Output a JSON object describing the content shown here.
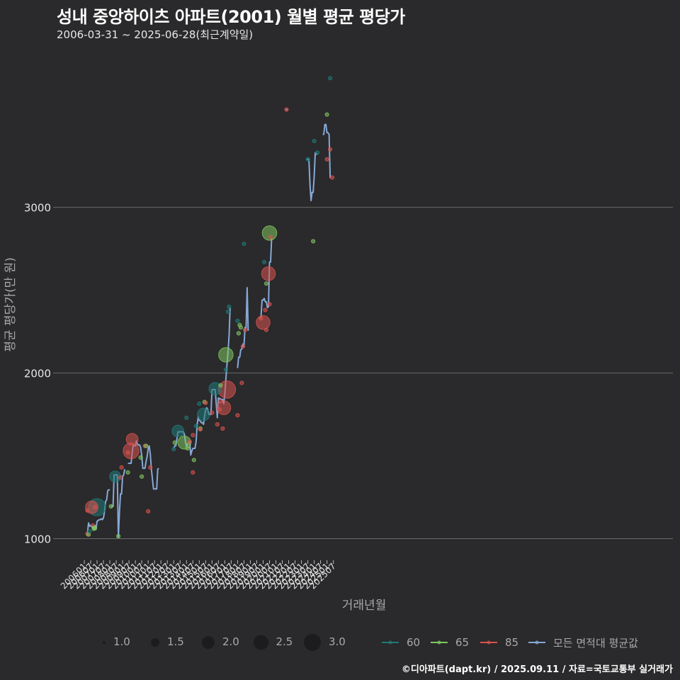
{
  "header": {
    "title": "성내 중앙하이츠 아파트(2001) 월별 평균 평당가",
    "subtitle": "2006-03-31 ~ 2025-06-28(최근계약일)"
  },
  "caption": "©디아파트(dapt.kr) / 2025.09.11 / 자료=국토교통부 실거래가",
  "colors": {
    "background": "#2a292b",
    "grid": "#6b6b6b",
    "s60": "#1f7a78",
    "s65": "#7fc760",
    "s85": "#d9534f",
    "avg": "#86a9d6"
  },
  "legend": {
    "size_title": "",
    "sizes": [
      {
        "label": "1.0",
        "r": 2
      },
      {
        "label": "1.5",
        "r": 6
      },
      {
        "label": "2.0",
        "r": 9
      },
      {
        "label": "2.5",
        "r": 10.5
      },
      {
        "label": "3.0",
        "r": 12
      }
    ],
    "series": [
      {
        "label": "60",
        "color": "#1f7a78"
      },
      {
        "label": "65",
        "color": "#7fc760"
      },
      {
        "label": "85",
        "color": "#d9534f"
      },
      {
        "label": "모든 면적대 평균값",
        "color": "#86a9d6"
      }
    ]
  },
  "chart_data": {
    "type": "scatter",
    "title": "성내 중앙하이츠 아파트(2001) 월별 평균 평당가",
    "subtitle": "2006-03-31 ~ 2025-06-28(최근계약일)",
    "xlabel": "거래년월",
    "ylabel": "평균 평당가(만 원)",
    "yticks": [
      1000,
      2000,
      3000
    ],
    "ylim": [
      870,
      3700
    ],
    "grid": "horizontal",
    "legend_position": "bottom",
    "xticks": [
      "200601",
      "200607",
      "200701",
      "200707",
      "200801",
      "200807",
      "200901",
      "200907",
      "201001",
      "201007",
      "201101",
      "201107",
      "201201",
      "201207",
      "201301",
      "201307",
      "201401",
      "201407",
      "201501",
      "201507",
      "201601",
      "201607",
      "201701",
      "201707",
      "201801",
      "201807",
      "201901",
      "201907",
      "202001",
      "202007",
      "202101",
      "202107",
      "202201",
      "202207",
      "202301",
      "202307",
      "202401",
      "202407",
      "202501",
      "202507"
    ],
    "points": [
      {
        "m": "2006-04",
        "s": "85",
        "y": 1170,
        "n": 1
      },
      {
        "m": "2006-04",
        "s": "85",
        "y": 1030,
        "n": 1
      },
      {
        "m": "2006-05",
        "s": "65",
        "y": 1025,
        "n": 1
      },
      {
        "m": "2006-06",
        "s": "60",
        "y": 1045,
        "n": 1
      },
      {
        "m": "2006-08",
        "s": "85",
        "y": 1190,
        "n": 2.3
      },
      {
        "m": "2006-09",
        "s": "85",
        "y": 1080,
        "n": 1
      },
      {
        "m": "2006-10",
        "s": "65",
        "y": 1065,
        "n": 1
      },
      {
        "m": "2006-10",
        "s": "65",
        "y": 1060,
        "n": 1
      },
      {
        "m": "2006-11",
        "s": "65",
        "y": 1065,
        "n": 1
      },
      {
        "m": "2006-11",
        "s": "85",
        "y": 1190,
        "n": 1
      },
      {
        "m": "2007-01",
        "s": "60",
        "y": 1190,
        "n": 3
      },
      {
        "m": "2008-02",
        "s": "65",
        "y": 1195,
        "n": 1
      },
      {
        "m": "2008-06",
        "s": "60",
        "y": 1375,
        "n": 2.1
      },
      {
        "m": "2008-09",
        "s": "65",
        "y": 1015,
        "n": 1
      },
      {
        "m": "2008-11",
        "s": "85",
        "y": 1370,
        "n": 1
      },
      {
        "m": "2008-12",
        "s": "85",
        "y": 1430,
        "n": 1
      },
      {
        "m": "2009-06",
        "s": "85",
        "y": 1520,
        "n": 1
      },
      {
        "m": "2009-06",
        "s": "65",
        "y": 1400,
        "n": 1
      },
      {
        "m": "2009-09",
        "s": "85",
        "y": 1530,
        "n": 2.8
      },
      {
        "m": "2009-10",
        "s": "85",
        "y": 1600,
        "n": 2.2
      },
      {
        "m": "2010-06",
        "s": "65",
        "y": 1490,
        "n": 1
      },
      {
        "m": "2010-07",
        "s": "65",
        "y": 1375,
        "n": 1
      },
      {
        "m": "2010-10",
        "s": "85",
        "y": 1560,
        "n": 1
      },
      {
        "m": "2010-11",
        "s": "65",
        "y": 1560,
        "n": 1
      },
      {
        "m": "2011-01",
        "s": "85",
        "y": 1165,
        "n": 1
      },
      {
        "m": "2011-03",
        "s": "85",
        "y": 1430,
        "n": 1
      },
      {
        "m": "2013-01",
        "s": "60",
        "y": 1540,
        "n": 1
      },
      {
        "m": "2013-02",
        "s": "65",
        "y": 1580,
        "n": 1
      },
      {
        "m": "2013-05",
        "s": "60",
        "y": 1650,
        "n": 2.2
      },
      {
        "m": "2013-11",
        "s": "65",
        "y": 1580,
        "n": 2.4
      },
      {
        "m": "2014-01",
        "s": "60",
        "y": 1730,
        "n": 1
      },
      {
        "m": "2014-02",
        "s": "65",
        "y": 1545,
        "n": 1
      },
      {
        "m": "2014-04",
        "s": "85",
        "y": 1585,
        "n": 1
      },
      {
        "m": "2014-07",
        "s": "85",
        "y": 1625,
        "n": 1
      },
      {
        "m": "2014-08",
        "s": "65",
        "y": 1475,
        "n": 1
      },
      {
        "m": "2014-07",
        "s": "85",
        "y": 1400,
        "n": 1
      },
      {
        "m": "2014-10",
        "s": "60",
        "y": 1680,
        "n": 1
      },
      {
        "m": "2015-01",
        "s": "60",
        "y": 1815,
        "n": 1
      },
      {
        "m": "2015-02",
        "s": "65",
        "y": 1665,
        "n": 1
      },
      {
        "m": "2015-02",
        "s": "85",
        "y": 1660,
        "n": 1
      },
      {
        "m": "2015-05",
        "s": "60",
        "y": 1750,
        "n": 2.3
      },
      {
        "m": "2015-06",
        "s": "65",
        "y": 1825,
        "n": 1
      },
      {
        "m": "2015-07",
        "s": "85",
        "y": 1820,
        "n": 1
      },
      {
        "m": "2016-01",
        "s": "85",
        "y": 1760,
        "n": 1
      },
      {
        "m": "2016-04",
        "s": "60",
        "y": 1905,
        "n": 2.3
      },
      {
        "m": "2016-06",
        "s": "85",
        "y": 1690,
        "n": 1
      },
      {
        "m": "2016-08",
        "s": "85",
        "y": 1780,
        "n": 1
      },
      {
        "m": "2016-09",
        "s": "65",
        "y": 1925,
        "n": 1
      },
      {
        "m": "2016-09",
        "s": "85",
        "y": 1830,
        "n": 1
      },
      {
        "m": "2016-11",
        "s": "85",
        "y": 1665,
        "n": 1
      },
      {
        "m": "2016-12",
        "s": "85",
        "y": 1790,
        "n": 2.5
      },
      {
        "m": "2017-03",
        "s": "85",
        "y": 1900,
        "n": 3
      },
      {
        "m": "2017-02",
        "s": "60",
        "y": 2020,
        "n": 1
      },
      {
        "m": "2017-02",
        "s": "65",
        "y": 2110,
        "n": 2.6
      },
      {
        "m": "2017-04",
        "s": "60",
        "y": 2370,
        "n": 1
      },
      {
        "m": "2017-05",
        "s": "60",
        "y": 2400,
        "n": 1
      },
      {
        "m": "2018-01",
        "s": "85",
        "y": 1745,
        "n": 1
      },
      {
        "m": "2018-01",
        "s": "60",
        "y": 2315,
        "n": 1
      },
      {
        "m": "2018-02",
        "s": "65",
        "y": 2240,
        "n": 1
      },
      {
        "m": "2018-03",
        "s": "65",
        "y": 2290,
        "n": 1
      },
      {
        "m": "2018-04",
        "s": "65",
        "y": 2275,
        "n": 1
      },
      {
        "m": "2018-05",
        "s": "85",
        "y": 1940,
        "n": 1
      },
      {
        "m": "2018-06",
        "s": "85",
        "y": 2160,
        "n": 1
      },
      {
        "m": "2018-07",
        "s": "60",
        "y": 2780,
        "n": 1
      },
      {
        "m": "2018-08",
        "s": "85",
        "y": 2260,
        "n": 1
      },
      {
        "m": "2019-11",
        "s": "85",
        "y": 2330,
        "n": 1
      },
      {
        "m": "2020-01",
        "s": "85",
        "y": 2305,
        "n": 2.5
      },
      {
        "m": "2020-02",
        "s": "60",
        "y": 2670,
        "n": 1
      },
      {
        "m": "2020-03",
        "s": "85",
        "y": 2380,
        "n": 1
      },
      {
        "m": "2020-04",
        "s": "65",
        "y": 2540,
        "n": 1
      },
      {
        "m": "2020-04",
        "s": "85",
        "y": 2260,
        "n": 1
      },
      {
        "m": "2020-06",
        "s": "85",
        "y": 2600,
        "n": 2.5
      },
      {
        "m": "2020-07",
        "s": "85",
        "y": 2415,
        "n": 1
      },
      {
        "m": "2020-07",
        "s": "65",
        "y": 2845,
        "n": 2.6
      },
      {
        "m": "2020-08",
        "s": "85",
        "y": 2820,
        "n": 1
      },
      {
        "m": "2021-11",
        "s": "85",
        "y": 3590,
        "n": 1
      },
      {
        "m": "2023-07",
        "s": "60",
        "y": 3290,
        "n": 1
      },
      {
        "m": "2023-12",
        "s": "65",
        "y": 2795,
        "n": 1
      },
      {
        "m": "2024-01",
        "s": "60",
        "y": 3400,
        "n": 1
      },
      {
        "m": "2024-04",
        "s": "60",
        "y": 3330,
        "n": 1
      },
      {
        "m": "2025-01",
        "s": "65",
        "y": 3560,
        "n": 1
      },
      {
        "m": "2025-01",
        "s": "85",
        "y": 3290,
        "n": 1
      },
      {
        "m": "2025-04",
        "s": "85",
        "y": 3350,
        "n": 1
      },
      {
        "m": "2025-04",
        "s": "60",
        "y": 3780,
        "n": 1
      },
      {
        "m": "2025-06",
        "s": "85",
        "y": 3180,
        "n": 1
      }
    ],
    "avg_segments": [
      [
        [
          "2006-04",
          1035
        ],
        [
          "2006-05",
          1095
        ],
        [
          "2006-06",
          1075
        ],
        [
          "2006-07",
          1080
        ],
        [
          "2006-08",
          1070
        ],
        [
          "2006-09",
          1075
        ],
        [
          "2006-10",
          1060
        ],
        [
          "2006-11",
          1080
        ],
        [
          "2006-12",
          1055
        ],
        [
          "2007-01",
          1105
        ],
        [
          "2007-02",
          1110
        ],
        [
          "2007-03",
          1115
        ],
        [
          "2007-04",
          1115
        ],
        [
          "2007-05",
          1120
        ],
        [
          "2007-06",
          1115
        ],
        [
          "2007-07",
          1125
        ],
        [
          "2007-08",
          1165
        ],
        [
          "2007-09",
          1225
        ],
        [
          "2007-10",
          1235
        ],
        [
          "2007-11",
          1290
        ],
        [
          "2007-12",
          1295
        ],
        [
          "2008-01",
          1295
        ]
      ],
      [
        [
          "2008-02",
          1195
        ],
        [
          "2008-03",
          1195
        ],
        [
          "2008-04",
          1195
        ],
        [
          "2008-05",
          1385
        ],
        [
          "2008-06",
          1385
        ],
        [
          "2008-07",
          1385
        ],
        [
          "2008-08",
          1385
        ],
        [
          "2008-09",
          1010
        ],
        [
          "2008-10",
          1155
        ],
        [
          "2008-11",
          1270
        ],
        [
          "2008-12",
          1270
        ],
        [
          "2009-01",
          1375
        ],
        [
          "2009-02",
          1385
        ],
        [
          "2009-03",
          1420
        ]
      ],
      [
        [
          "2009-06",
          1455
        ],
        [
          "2009-07",
          1455
        ],
        [
          "2009-08",
          1455
        ],
        [
          "2009-09",
          1455
        ],
        [
          "2009-10",
          1520
        ],
        [
          "2009-11",
          1565
        ],
        [
          "2009-12",
          1565
        ],
        [
          "2010-01",
          1560
        ],
        [
          "2010-02",
          1590
        ],
        [
          "2010-03",
          1570
        ],
        [
          "2010-04",
          1565
        ],
        [
          "2010-05",
          1565
        ],
        [
          "2010-06",
          1550
        ],
        [
          "2010-07",
          1500
        ],
        [
          "2010-08",
          1425
        ],
        [
          "2010-09",
          1425
        ],
        [
          "2010-10",
          1425
        ],
        [
          "2010-11",
          1465
        ],
        [
          "2010-12",
          1495
        ],
        [
          "2011-01",
          1545
        ],
        [
          "2011-02",
          1560
        ],
        [
          "2011-03",
          1510
        ],
        [
          "2011-04",
          1420
        ],
        [
          "2011-05",
          1360
        ],
        [
          "2011-06",
          1300
        ],
        [
          "2011-07",
          1300
        ],
        [
          "2011-08",
          1300
        ],
        [
          "2011-09",
          1300
        ],
        [
          "2011-10",
          1420
        ],
        [
          "2011-11",
          1425
        ]
      ],
      [
        [
          "2013-01",
          1545
        ],
        [
          "2013-02",
          1560
        ],
        [
          "2013-03",
          1560
        ],
        [
          "2013-04",
          1600
        ],
        [
          "2013-05",
          1645
        ],
        [
          "2013-06",
          1645
        ],
        [
          "2013-07",
          1645
        ],
        [
          "2013-08",
          1645
        ],
        [
          "2013-09",
          1645
        ],
        [
          "2013-10",
          1645
        ],
        [
          "2013-11",
          1630
        ],
        [
          "2013-12",
          1585
        ],
        [
          "2014-01",
          1555
        ],
        [
          "2014-02",
          1570
        ],
        [
          "2014-03",
          1580
        ],
        [
          "2014-04",
          1585
        ],
        [
          "2014-05",
          1505
        ],
        [
          "2014-06",
          1530
        ],
        [
          "2014-07",
          1545
        ],
        [
          "2014-08",
          1545
        ],
        [
          "2014-09",
          1545
        ],
        [
          "2014-10",
          1585
        ],
        [
          "2014-11",
          1685
        ],
        [
          "2014-12",
          1735
        ],
        [
          "2015-01",
          1715
        ],
        [
          "2015-02",
          1710
        ],
        [
          "2015-03",
          1700
        ],
        [
          "2015-04",
          1700
        ],
        [
          "2015-05",
          1690
        ],
        [
          "2015-06",
          1740
        ],
        [
          "2015-07",
          1775
        ],
        [
          "2015-08",
          1790
        ],
        [
          "2015-09",
          1780
        ],
        [
          "2015-10",
          1750
        ],
        [
          "2015-11",
          1750
        ],
        [
          "2015-12",
          1750
        ],
        [
          "2016-01",
          1900
        ],
        [
          "2016-02",
          1900
        ],
        [
          "2016-03",
          1900
        ],
        [
          "2016-04",
          1900
        ],
        [
          "2016-05",
          1815
        ],
        [
          "2016-06",
          1730
        ],
        [
          "2016-07",
          1850
        ],
        [
          "2016-08",
          1845
        ],
        [
          "2016-09",
          1845
        ],
        [
          "2016-10",
          1840
        ],
        [
          "2016-11",
          1840
        ],
        [
          "2016-12",
          1815
        ],
        [
          "2017-01",
          1875
        ],
        [
          "2017-02",
          1965
        ],
        [
          "2017-03",
          2050
        ],
        [
          "2017-04",
          2125
        ],
        [
          "2017-05",
          2225
        ],
        [
          "2017-06",
          2395
        ]
      ],
      [
        [
          "2018-01",
          2030
        ],
        [
          "2018-02",
          2095
        ],
        [
          "2018-03",
          2095
        ],
        [
          "2018-04",
          2140
        ],
        [
          "2018-05",
          2145
        ],
        [
          "2018-06",
          2175
        ],
        [
          "2018-07",
          2160
        ],
        [
          "2018-08",
          2275
        ],
        [
          "2018-09",
          2270
        ],
        [
          "2018-10",
          2515
        ],
        [
          "2018-11",
          2255
        ]
      ],
      [
        [
          "2019-10",
          2335
        ],
        [
          "2019-11",
          2335
        ],
        [
          "2019-12",
          2440
        ],
        [
          "2020-01",
          2440
        ],
        [
          "2020-02",
          2450
        ],
        [
          "2020-03",
          2430
        ],
        [
          "2020-04",
          2430
        ],
        [
          "2020-05",
          2395
        ],
        [
          "2020-06",
          2400
        ],
        [
          "2020-07",
          2670
        ],
        [
          "2020-08",
          2670
        ],
        [
          "2020-09",
          2815
        ]
      ],
      [
        [
          "2021-10",
          3590
        ],
        [
          "2021-11",
          3590
        ],
        [
          "2021-12",
          3590
        ]
      ],
      [
        [
          "2023-06",
          3290
        ],
        [
          "2023-07",
          3290
        ],
        [
          "2023-08",
          3290
        ],
        [
          "2023-09",
          3140
        ],
        [
          "2023-10",
          3040
        ],
        [
          "2023-11",
          3090
        ],
        [
          "2023-12",
          3090
        ],
        [
          "2024-01",
          3190
        ],
        [
          "2024-02",
          3330
        ],
        [
          "2024-03",
          3320
        ],
        [
          "2024-04",
          3325
        ]
      ],
      [
        [
          "2024-09",
          3440
        ],
        [
          "2024-10",
          3440
        ],
        [
          "2024-11",
          3500
        ],
        [
          "2024-12",
          3500
        ],
        [
          "2025-01",
          3450
        ],
        [
          "2025-02",
          3450
        ],
        [
          "2025-03",
          3440
        ],
        [
          "2025-04",
          3180
        ],
        [
          "2025-05",
          3180
        ]
      ]
    ]
  }
}
